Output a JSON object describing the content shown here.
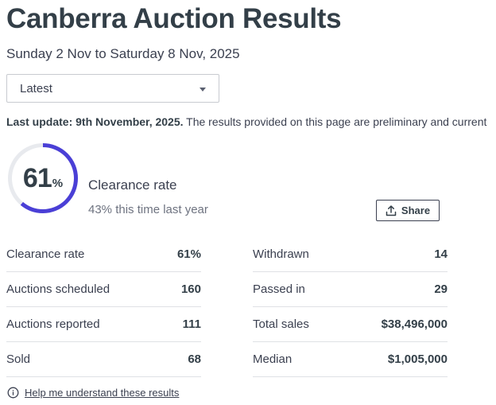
{
  "header": {
    "title": "Canberra Auction Results",
    "date_range": "Sunday 2 Nov to Saturday 8 Nov, 2025"
  },
  "week_select": {
    "selected": "Latest"
  },
  "update": {
    "label": "Last update: 9th November, 2025.",
    "text": " The results provided on this page are preliminary and current"
  },
  "clearance": {
    "value": "61",
    "percent": 61,
    "unit": "%",
    "label": "Clearance rate",
    "last_year": "43% this time last year",
    "ring_color": "#4a3fd6",
    "track_color": "#e8eaee"
  },
  "share": {
    "label": "Share",
    "icon": "share-upload-icon"
  },
  "stats_left": [
    {
      "label": "Clearance rate",
      "value": "61%"
    },
    {
      "label": "Auctions scheduled",
      "value": "160"
    },
    {
      "label": "Auctions reported",
      "value": "111"
    },
    {
      "label": "Sold",
      "value": "68"
    }
  ],
  "stats_right": [
    {
      "label": "Withdrawn",
      "value": "14"
    },
    {
      "label": "Passed in",
      "value": "29"
    },
    {
      "label": "Total sales",
      "value": "$38,496,000"
    },
    {
      "label": "Median",
      "value": "$1,005,000"
    }
  ],
  "help": {
    "label": "Help me understand these results",
    "icon": "info-icon"
  }
}
